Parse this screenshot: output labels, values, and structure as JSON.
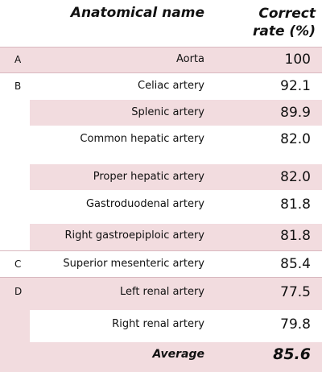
{
  "header": {
    "anatomical_name": "Anatomical name",
    "correct_rate_line1": "Correct",
    "correct_rate_line2": "rate (%)"
  },
  "groups": [
    "A",
    "B",
    "C",
    "D"
  ],
  "rows": [
    {
      "group": "A",
      "name": "Aorta",
      "rate": "100"
    },
    {
      "group": "B",
      "name": "Celiac artery",
      "rate": "92.1"
    },
    {
      "group": "",
      "name": "Splenic artery",
      "rate": "89.9"
    },
    {
      "group": "",
      "name": "Common hepatic artery",
      "rate": "82.0"
    },
    {
      "group": "",
      "name": "Proper hepatic artery",
      "rate": "82.0"
    },
    {
      "group": "",
      "name": "Gastroduodenal artery",
      "rate": "81.8"
    },
    {
      "group": "",
      "name": "Right gastroepiploic artery",
      "rate": "81.8"
    },
    {
      "group": "C",
      "name": "Superior mesenteric artery",
      "rate": "85.4"
    },
    {
      "group": "D",
      "name": "Left renal artery",
      "rate": "77.5"
    },
    {
      "group": "",
      "name": "Right renal artery",
      "rate": "79.8"
    }
  ],
  "average": {
    "label": "Average",
    "rate": "85.6"
  },
  "colors": {
    "stripe": "#f2dcdf",
    "rule": "#d9b8bf"
  }
}
